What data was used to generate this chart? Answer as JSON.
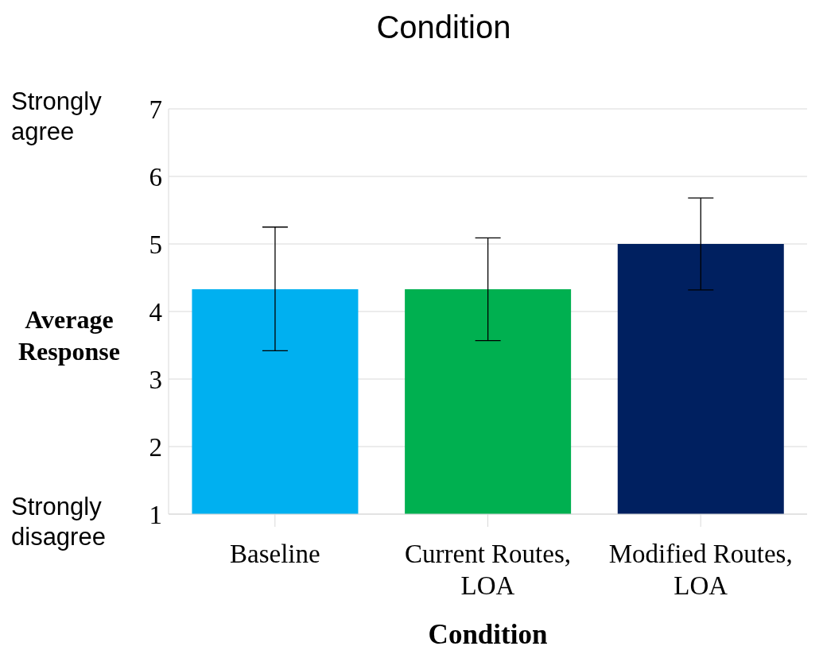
{
  "chart_data": {
    "type": "bar",
    "title": "Condition",
    "xlabel": "Condition",
    "ylabel": "Average Response",
    "categories": [
      "Baseline",
      "Current Routes, LOA",
      "Modified Routes, LOA"
    ],
    "values": [
      4.33,
      4.33,
      5.0
    ],
    "colors": [
      "#00b0f0",
      "#00b050",
      "#002060"
    ],
    "errors": [
      [
        3.42,
        5.25
      ],
      [
        3.57,
        5.09
      ],
      [
        4.32,
        5.68
      ]
    ],
    "ylim": [
      1,
      7
    ],
    "yticks": [
      1,
      2,
      3,
      4,
      5,
      6,
      7
    ],
    "grid": "y",
    "annotations": [
      "Strongly agree",
      "Strongly disagree"
    ]
  }
}
